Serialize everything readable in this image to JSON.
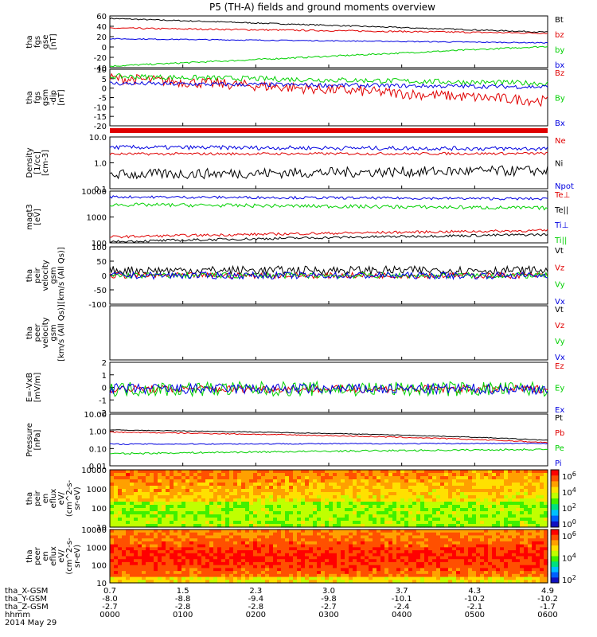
{
  "title": "P5 (TH-A) fields and ground moments overview",
  "colors": {
    "black": "#000000",
    "red": "#e00000",
    "green": "#00d000",
    "blue": "#0000e0"
  },
  "chart_data": {
    "type": "line",
    "x_ticks": [
      "0000",
      "0100",
      "0200",
      "0300",
      "0400",
      "0500",
      "0600"
    ],
    "ephemeris": {
      "labels": [
        "tha_X-GSM",
        "tha_Y-GSM",
        "tha_Z-GSM",
        "hhmm",
        "2014 May 29"
      ],
      "X-GSM": [
        "0.7",
        "1.5",
        "2.3",
        "3.0",
        "3.7",
        "4.3",
        "4.9"
      ],
      "Y-GSM": [
        "-8.0",
        "-8.8",
        "-9.4",
        "-9.8",
        "-10.1",
        "-10.2",
        "-10.2"
      ],
      "Z-GSM": [
        "-2.7",
        "-2.8",
        "-2.8",
        "-2.7",
        "-2.4",
        "-2.1",
        "-1.7"
      ]
    },
    "panels": [
      {
        "id": "p1",
        "ylabel": [
          "tha",
          "fgs",
          "gse",
          "[nT]"
        ],
        "ticks": [
          "60",
          "40",
          "20",
          "0",
          "-20",
          "-40"
        ],
        "ylim": [
          -40,
          62
        ],
        "series": [
          {
            "name": "Bt",
            "color": "black",
            "start": 57,
            "end": 30,
            "noise": 1.2
          },
          {
            "name": "bz",
            "color": "red",
            "start": 38,
            "end": 28,
            "noise": 1.5
          },
          {
            "name": "by",
            "color": "green",
            "start": -37,
            "end": 2,
            "noise": 1.5
          },
          {
            "name": "bx",
            "color": "blue",
            "start": 17,
            "end": 9,
            "noise": 1
          }
        ]
      },
      {
        "id": "p2",
        "ylabel": [
          "tha",
          "fgs",
          "gsm",
          "-dip",
          "[nT]"
        ],
        "ticks": [
          "10",
          "5",
          "0",
          "-5",
          "-10",
          "-15",
          "-20"
        ],
        "ylim": [
          -22,
          10
        ],
        "series": [
          {
            "name": "Bz",
            "color": "red",
            "start": 5,
            "end": -8,
            "noise": 3
          },
          {
            "name": "By",
            "color": "green",
            "start": 6,
            "end": 2,
            "noise": 1.5
          },
          {
            "name": "Bx",
            "color": "blue",
            "start": 2,
            "end": 0,
            "noise": 1.2
          }
        ]
      },
      {
        "id": "p4",
        "ylabel": [
          "Density",
          "[1/cc]",
          "[cm-3]"
        ],
        "ticks": [
          "10.0",
          "1.0",
          "0.1"
        ],
        "ylim": [
          0.1,
          10
        ],
        "log": true,
        "series": [
          {
            "name": "Ne",
            "color": "red",
            "start": 2.2,
            "end": 2.3,
            "noise": 0.05
          },
          {
            "name": "Ni",
            "color": "black",
            "start": 0.35,
            "end": 0.5,
            "noise": 0.2
          },
          {
            "name": "Npot",
            "color": "blue",
            "start": 4,
            "end": 3.5,
            "noise": 0.08
          }
        ]
      },
      {
        "id": "p5",
        "ylabel": [
          "magt3",
          "[eV]"
        ],
        "ticks": [
          "10000",
          "1000",
          "100"
        ],
        "ylim": [
          100,
          10000
        ],
        "log": true,
        "series": [
          {
            "name": "Te⊥",
            "color": "red",
            "start": 170,
            "end": 300,
            "noise": 0.05
          },
          {
            "name": "Te||",
            "color": "black",
            "start": 110,
            "end": 210,
            "noise": 0.05
          },
          {
            "name": "Ti⊥",
            "color": "blue",
            "start": 6000,
            "end": 5000,
            "noise": 0.05
          },
          {
            "name": "Ti||",
            "color": "green",
            "start": 3000,
            "end": 2200,
            "noise": 0.07
          }
        ]
      },
      {
        "id": "p6",
        "ylabel": [
          "tha",
          "peir",
          "velocity",
          "gsm",
          "[km/s (All Qs)]"
        ],
        "ticks": [
          "100",
          "50",
          "0",
          "-50",
          "-100"
        ],
        "ylim": [
          -100,
          100
        ],
        "series": [
          {
            "name": "Vt",
            "color": "black",
            "start": 18,
            "end": 18,
            "noise": 15
          },
          {
            "name": "Vz",
            "color": "red",
            "start": 0,
            "end": 0,
            "noise": 10
          },
          {
            "name": "Vy",
            "color": "green",
            "start": 0,
            "end": 0,
            "noise": 10
          },
          {
            "name": "Vx",
            "color": "blue",
            "start": 0,
            "end": 0,
            "noise": 12
          }
        ]
      },
      {
        "id": "p7",
        "ylabel": [
          "tha",
          "peer",
          "velocity",
          "gsm",
          "[km/s (All Qs)]"
        ],
        "ticks": [],
        "ylim": [
          -100,
          100
        ],
        "series": [
          {
            "name": "Vt",
            "color": "black"
          },
          {
            "name": "Vz",
            "color": "red"
          },
          {
            "name": "Vy",
            "color": "green"
          },
          {
            "name": "Vx",
            "color": "blue"
          }
        ]
      },
      {
        "id": "p8",
        "ylabel": [
          "E=-VxB",
          "[mV/m]"
        ],
        "ticks": [
          "2",
          "1",
          "0",
          "-1",
          "-2"
        ],
        "ylim": [
          -2.2,
          2.5
        ],
        "series": [
          {
            "name": "Ez",
            "color": "red",
            "start": 0,
            "end": 0,
            "noise": 0.35
          },
          {
            "name": "Ey",
            "color": "green",
            "start": 0,
            "end": 0,
            "noise": 0.7
          },
          {
            "name": "Ex",
            "color": "blue",
            "start": 0,
            "end": 0,
            "noise": 0.5
          }
        ]
      },
      {
        "id": "p9",
        "ylabel": [
          "Pressure",
          "[nPa]"
        ],
        "ticks": [
          "10.00",
          "1.00",
          "0.10",
          "0.01"
        ],
        "ylim": [
          0.01,
          10
        ],
        "log": true,
        "series": [
          {
            "name": "Pt",
            "color": "black",
            "start": 1.2,
            "end": 0.3,
            "noise": 0.02
          },
          {
            "name": "Pb",
            "color": "red",
            "start": 0.9,
            "end": 0.22,
            "noise": 0.03
          },
          {
            "name": "Pe",
            "color": "green",
            "start": 0.05,
            "end": 0.09,
            "noise": 0.05
          },
          {
            "name": "Pi",
            "color": "blue",
            "start": 0.18,
            "end": 0.2,
            "noise": 0.03
          }
        ]
      },
      {
        "id": "p10",
        "ylabel": [
          "tha",
          "peir",
          "en",
          "eflux",
          "eV/",
          "(cm^2-s-",
          "sr-eV)"
        ],
        "ticks": [
          "10000",
          "1000",
          "100",
          "10"
        ],
        "spectrogram": "ion"
      },
      {
        "id": "p11",
        "ylabel": [
          "tha",
          "peer",
          "en",
          "eflux",
          "eV/",
          "(cm^2-s-",
          "sr-eV)"
        ],
        "ticks": [
          "10000",
          "1000",
          "100",
          "10"
        ],
        "spectrogram": "electron"
      }
    ],
    "colorbars": [
      {
        "ticks": [
          "10^6",
          "10^4",
          "10^2",
          "10^0"
        ]
      },
      {
        "ticks": [
          "10^6",
          "10^4",
          "10^2"
        ]
      }
    ]
  }
}
